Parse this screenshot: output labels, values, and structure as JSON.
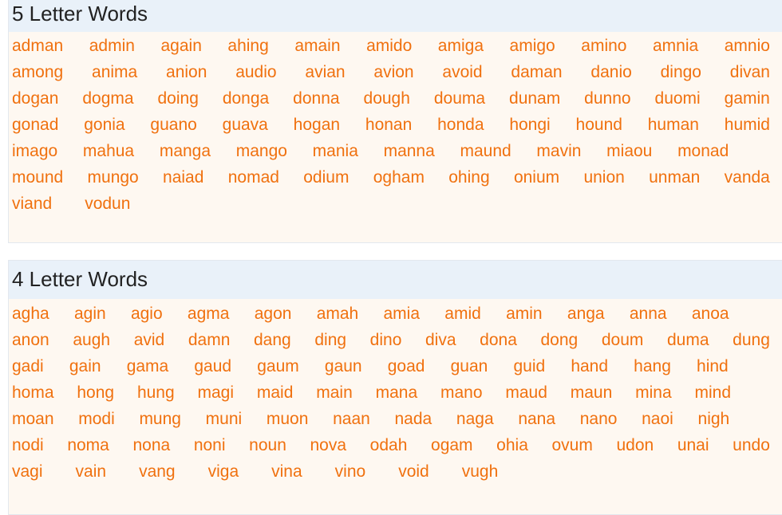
{
  "sections": [
    {
      "title": "5 Letter Words",
      "rows": [
        [
          "adman",
          "admin",
          "again",
          "ahing",
          "amain",
          "amido",
          "amiga",
          "amigo",
          "amino",
          "amnia",
          "amnio"
        ],
        [
          "among",
          "anima",
          "anion",
          "audio",
          "avian",
          "avion",
          "avoid",
          "daman",
          "danio",
          "dingo",
          "divan"
        ],
        [
          "dogan",
          "dogma",
          "doing",
          "donga",
          "donna",
          "dough",
          "douma",
          "dunam",
          "dunno",
          "duomi",
          "gamin"
        ],
        [
          "gonad",
          "gonia",
          "guano",
          "guava",
          "hogan",
          "honan",
          "honda",
          "hongi",
          "hound",
          "human",
          "humid"
        ],
        [
          "imago",
          "mahua",
          "manga",
          "mango",
          "mania",
          "manna",
          "maund",
          "mavin",
          "miaou",
          "monad"
        ],
        [
          "mound",
          "mungo",
          "naiad",
          "nomad",
          "odium",
          "ogham",
          "ohing",
          "onium",
          "union",
          "unman",
          "vanda"
        ],
        [
          "viand",
          "vodun"
        ]
      ]
    },
    {
      "title": "4 Letter Words",
      "rows": [
        [
          "agha",
          "agin",
          "agio",
          "agma",
          "agon",
          "amah",
          "amia",
          "amid",
          "amin",
          "anga",
          "anna",
          "anoa"
        ],
        [
          "anon",
          "augh",
          "avid",
          "damn",
          "dang",
          "ding",
          "dino",
          "diva",
          "dona",
          "dong",
          "doum",
          "duma",
          "dung"
        ],
        [
          "gadi",
          "gain",
          "gama",
          "gaud",
          "gaum",
          "gaun",
          "goad",
          "guan",
          "guid",
          "hand",
          "hang",
          "hind"
        ],
        [
          "homa",
          "hong",
          "hung",
          "magi",
          "maid",
          "main",
          "mana",
          "mano",
          "maud",
          "maun",
          "mina",
          "mind"
        ],
        [
          "moan",
          "modi",
          "mung",
          "muni",
          "muon",
          "naan",
          "nada",
          "naga",
          "nana",
          "nano",
          "naoi",
          "nigh"
        ],
        [
          "nodi",
          "noma",
          "nona",
          "noni",
          "noun",
          "nova",
          "odah",
          "ogam",
          "ohia",
          "ovum",
          "udon",
          "unai",
          "undo"
        ],
        [
          "vagi",
          "vain",
          "vang",
          "viga",
          "vina",
          "vino",
          "void",
          "vugh"
        ]
      ]
    }
  ],
  "colors": {
    "link": "#f0710f",
    "header_bg": "#e9f1f9",
    "body_bg": "#fef8f1"
  }
}
